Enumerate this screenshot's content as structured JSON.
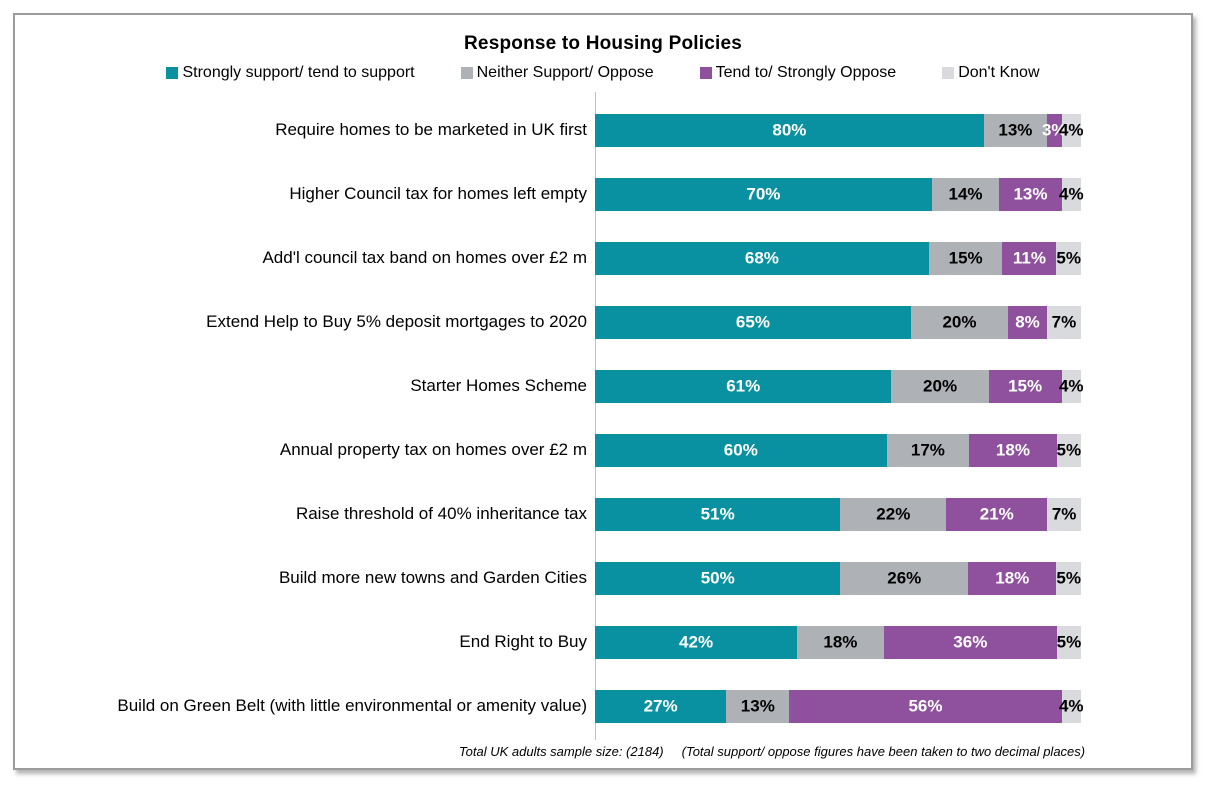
{
  "chart_data": {
    "type": "bar",
    "orientation": "horizontal",
    "stacked": true,
    "title": "Response to Housing Policies",
    "xlim": [
      0,
      100
    ],
    "grid": false,
    "legend_position": "top",
    "value_suffix": "%",
    "axis_line_color": "#bfbfbf",
    "categories": [
      "Require homes to be marketed in UK first",
      "Higher Council tax for homes left empty",
      "Add'l council tax band on homes over £2 m",
      "Extend Help to Buy 5% deposit mortgages to 2020",
      "Starter Homes Scheme",
      "Annual property tax on homes over £2 m",
      "Raise threshold of 40% inheritance tax",
      "Build more new towns and Garden Cities",
      "End Right to Buy",
      "Build on Green Belt (with little environmental or amenity value)"
    ],
    "series": [
      {
        "name": "Strongly support/ tend to support",
        "color": "#0a91a1",
        "text_color": "#ffffff",
        "values": [
          80,
          70,
          68,
          65,
          61,
          60,
          51,
          50,
          42,
          27
        ],
        "labels": [
          "80%",
          "70%",
          "68%",
          "65%",
          "61%",
          "60%",
          "51%",
          "50%",
          "42%",
          "27%"
        ]
      },
      {
        "name": "Neither Support/ Oppose",
        "color": "#aeb1b6",
        "text_color": "#000000",
        "values": [
          13,
          14,
          15,
          20,
          20,
          17,
          22,
          26,
          18,
          13
        ],
        "labels": [
          "13%",
          "14%",
          "15%",
          "20%",
          "20%",
          "17%",
          "22%",
          "26%",
          "18%",
          "13%"
        ]
      },
      {
        "name": "Tend to/ Strongly Oppose",
        "color": "#8f519e",
        "text_color": "#ffffff",
        "values": [
          3,
          13,
          11,
          8,
          15,
          18,
          21,
          18,
          36,
          56
        ],
        "labels": [
          "3%",
          "13%",
          "11%",
          "8%",
          "15%",
          "18%",
          "21%",
          "18%",
          "36%",
          "56%"
        ]
      },
      {
        "name": "Don't Know",
        "color": "#d8dadd",
        "text_color": "#000000",
        "values": [
          4,
          4,
          5,
          7,
          4,
          5,
          7,
          5,
          5,
          4
        ],
        "labels": [
          "4%",
          "4%",
          "5%",
          "7%",
          "4%",
          "5%",
          "7%",
          "5%",
          "5%",
          "4%"
        ]
      }
    ],
    "footnote_sample": "Total UK adults sample size: (2184)",
    "footnote_note": "(Total support/ oppose figures have been taken to two decimal places)"
  }
}
